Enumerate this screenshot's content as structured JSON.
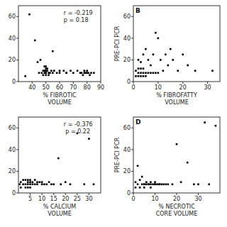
{
  "chart_data": [
    {
      "type": "scatter",
      "xlabel": "% FIBROTIC\nVOLUME",
      "annotation": "r = -0.219\np = 0.18",
      "color": "black",
      "marker": "square",
      "xlim": [
        30,
        90
      ],
      "ylim": [
        0,
        70
      ],
      "xticks": [
        40,
        50,
        60,
        70,
        80,
        90
      ],
      "yticks": [
        0,
        20,
        40,
        60
      ],
      "x": [
        35,
        38,
        42,
        44,
        45,
        46,
        47,
        48,
        48,
        49,
        49,
        49,
        50,
        50,
        50,
        50,
        50,
        50,
        51,
        51,
        52,
        52,
        53,
        54,
        55,
        56,
        58,
        60,
        63,
        65,
        68,
        70,
        73,
        75,
        76,
        77,
        78,
        78,
        79,
        80,
        80,
        81,
        82,
        83,
        85,
        55,
        60,
        65
      ],
      "values": [
        5,
        62,
        38,
        18,
        8,
        20,
        8,
        6,
        10,
        8,
        10,
        14,
        8,
        10,
        12,
        6,
        8,
        14,
        10,
        12,
        8,
        6,
        8,
        10,
        28,
        10,
        8,
        8,
        10,
        8,
        10,
        8,
        10,
        8,
        8,
        6,
        8,
        10,
        8,
        10,
        8,
        8,
        6,
        8,
        8,
        8,
        10,
        8
      ]
    },
    {
      "type": "scatter",
      "title": "B",
      "xlabel": "% FIBROFATTY\nVOLUME",
      "ylabel": "PRE-PCI PCR",
      "color": "black",
      "marker": "square",
      "xlim": [
        0,
        35
      ],
      "ylim": [
        0,
        70
      ],
      "xticks": [
        0,
        10,
        20,
        30
      ],
      "yticks": [
        0,
        20,
        40,
        60
      ],
      "x": [
        1,
        1,
        2,
        2,
        2,
        2,
        3,
        3,
        3,
        3,
        4,
        4,
        4,
        4,
        5,
        5,
        5,
        6,
        6,
        7,
        7,
        8,
        8,
        9,
        9,
        10,
        10,
        11,
        12,
        13,
        14,
        15,
        16,
        18,
        20,
        22,
        25,
        32
      ],
      "values": [
        5,
        10,
        5,
        8,
        12,
        20,
        5,
        8,
        12,
        18,
        5,
        8,
        12,
        25,
        5,
        8,
        30,
        8,
        20,
        8,
        15,
        8,
        25,
        8,
        45,
        8,
        40,
        20,
        10,
        25,
        15,
        30,
        20,
        10,
        25,
        15,
        10,
        10
      ]
    },
    {
      "type": "scatter",
      "xlabel": "% CALCIUM\nVOLUME",
      "annotation": "r = -0.376\n p = 0.22",
      "color": "black",
      "marker": "square",
      "xlim": [
        0,
        35
      ],
      "ylim": [
        0,
        70
      ],
      "xticks": [
        5,
        10,
        15,
        20,
        25,
        30
      ],
      "yticks": [
        0,
        20,
        40,
        60
      ],
      "x": [
        0.5,
        1,
        1,
        2,
        2,
        3,
        3,
        3,
        4,
        4,
        4,
        4,
        5,
        5,
        5,
        5,
        6,
        6,
        7,
        7,
        8,
        8,
        9,
        10,
        10,
        11,
        12,
        13,
        14,
        15,
        17,
        18,
        20,
        22,
        25,
        28,
        30,
        32
      ],
      "values": [
        8,
        5,
        10,
        8,
        12,
        5,
        8,
        12,
        5,
        8,
        10,
        12,
        5,
        8,
        10,
        12,
        8,
        10,
        8,
        12,
        8,
        10,
        10,
        8,
        10,
        8,
        8,
        10,
        8,
        8,
        32,
        8,
        10,
        8,
        55,
        8,
        50,
        8
      ]
    },
    {
      "type": "scatter",
      "title": "D",
      "xlabel": "% NECROTIC\nCORE VOLUME",
      "ylabel": "PRE-PCI PCR",
      "color": "black",
      "marker": "square",
      "xlim": [
        0,
        40
      ],
      "ylim": [
        0,
        70
      ],
      "xticks": [
        0,
        10,
        20,
        30
      ],
      "yticks": [
        0,
        20,
        40,
        60
      ],
      "x": [
        1,
        1,
        2,
        2,
        3,
        3,
        4,
        4,
        5,
        5,
        6,
        6,
        7,
        7,
        8,
        8,
        9,
        10,
        10,
        11,
        12,
        13,
        14,
        15,
        16,
        18,
        20,
        22,
        25,
        28,
        30,
        33,
        35,
        38,
        5,
        8,
        10,
        12
      ],
      "values": [
        5,
        10,
        8,
        25,
        5,
        12,
        8,
        15,
        5,
        8,
        8,
        10,
        8,
        8,
        5,
        10,
        8,
        8,
        10,
        8,
        8,
        8,
        8,
        8,
        8,
        8,
        45,
        10,
        28,
        8,
        8,
        65,
        8,
        62,
        8,
        8,
        8,
        8
      ]
    }
  ]
}
